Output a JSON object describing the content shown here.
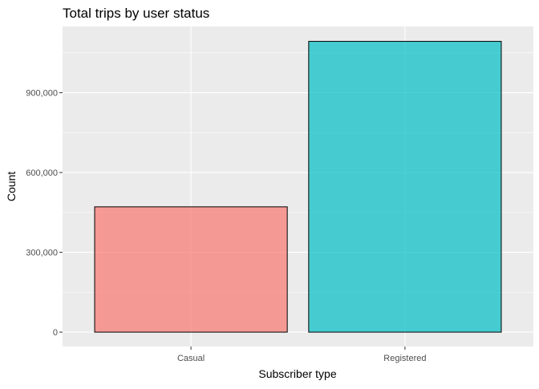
{
  "chart_data": {
    "type": "bar",
    "title": "Total trips by user status",
    "xlabel": "Subscriber type",
    "ylabel": "Count",
    "categories": [
      "Casual",
      "Registered"
    ],
    "values": [
      471000,
      1093000
    ],
    "ylim": [
      -54000,
      1149000
    ],
    "yticks": [
      0,
      300000,
      600000,
      900000
    ],
    "ytick_labels": [
      "0",
      "300,000",
      "600,000",
      "900,000"
    ],
    "colors": [
      "#F8766D",
      "#00BFC4"
    ],
    "bar_outline": "#000000",
    "bar_alpha": 0.7,
    "panel_background": "#EBEBEB",
    "grid_color": "#FFFFFF",
    "grid": true,
    "legend": "none"
  }
}
